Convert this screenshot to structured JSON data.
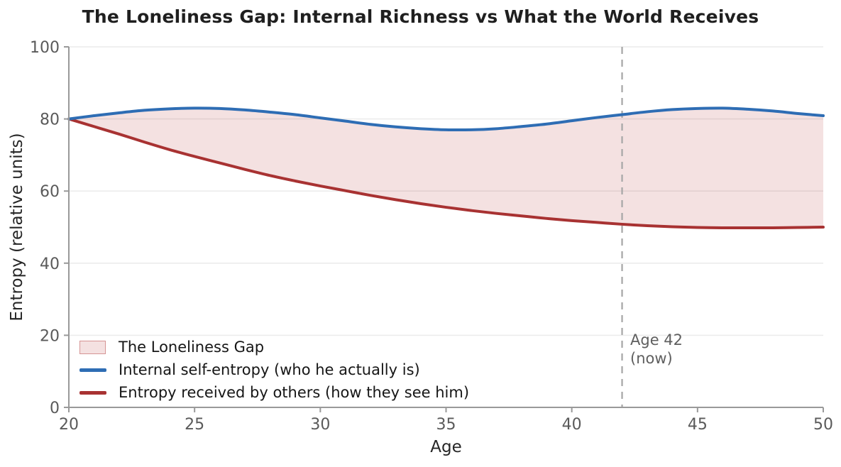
{
  "chart_data": {
    "type": "line",
    "title": "The Loneliness Gap: Internal Richness vs What the World Receives",
    "xlabel": "Age",
    "ylabel": "Entropy (relative units)",
    "xlim": [
      20,
      50
    ],
    "ylim": [
      0,
      100
    ],
    "xticks": [
      20,
      25,
      30,
      35,
      40,
      45,
      50
    ],
    "yticks": [
      0,
      20,
      40,
      60,
      80,
      100
    ],
    "grid": true,
    "legend_position": "lower-left",
    "x": [
      20,
      21,
      22,
      23,
      24,
      25,
      26,
      27,
      28,
      29,
      30,
      31,
      32,
      33,
      34,
      35,
      36,
      37,
      38,
      39,
      40,
      41,
      42,
      43,
      44,
      45,
      46,
      47,
      48,
      49,
      50
    ],
    "series": [
      {
        "name": "Internal self-entropy (who he actually is)",
        "color": "#2e6db4",
        "values": [
          80.0,
          80.9,
          81.7,
          82.4,
          82.8,
          83.0,
          82.9,
          82.5,
          81.9,
          81.2,
          80.3,
          79.4,
          78.5,
          77.8,
          77.3,
          77.0,
          77.0,
          77.3,
          77.9,
          78.6,
          79.5,
          80.4,
          81.2,
          82.0,
          82.6,
          82.9,
          83.0,
          82.7,
          82.2,
          81.5,
          80.9
        ]
      },
      {
        "name": "Entropy received by others (how they see him)",
        "color": "#a83232",
        "values": [
          80.0,
          77.9,
          75.8,
          73.6,
          71.5,
          69.6,
          67.8,
          66.0,
          64.3,
          62.8,
          61.4,
          60.1,
          58.8,
          57.6,
          56.5,
          55.5,
          54.6,
          53.8,
          53.1,
          52.4,
          51.8,
          51.3,
          50.8,
          50.4,
          50.1,
          49.9,
          49.8,
          49.8,
          49.8,
          49.9,
          50.0
        ]
      }
    ],
    "fill_between": {
      "label": "The Loneliness Gap",
      "fill_color": "rgba(178,56,56,0.15)",
      "edge_color": "rgba(178,56,56,0.45)"
    },
    "vline": {
      "x": 42,
      "label_line1": "Age 42",
      "label_line2": "(now)",
      "color": "#a6a6a6"
    },
    "legend": [
      {
        "swatch": "patch",
        "label": "The Loneliness Gap"
      },
      {
        "swatch": "line-blue",
        "label": "Internal self-entropy (who he actually is)"
      },
      {
        "swatch": "line-red",
        "label": "Entropy received by others (how they see him)"
      }
    ],
    "colors": {
      "grid": "#ececec",
      "spine": "#999999",
      "tick_label": "#5a5a5a",
      "text": "#262626"
    }
  }
}
